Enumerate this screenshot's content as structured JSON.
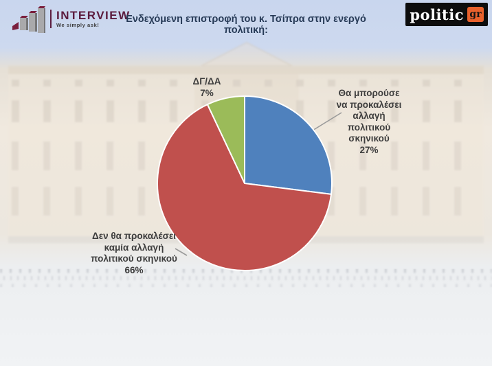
{
  "brand": {
    "interview": {
      "name": "INTERVIEW",
      "tagline": "We simply ask!",
      "color": "#5c1c3e"
    },
    "politic": {
      "text": "politic",
      "suffix": "gr",
      "bg": "#0d0d0d",
      "accent": "#e8612c"
    }
  },
  "title": {
    "text": "Ενδεχόμενη επιστροφή του κ. Τσίπρα στην ενεργό\nπολιτική:"
  },
  "chart_data": {
    "type": "pie",
    "title": "Ενδεχόμενη επιστροφή του κ. Τσίπρα στην ενεργό πολιτική:",
    "unit": "%",
    "direction": "clockwise",
    "start_angle_deg": 0,
    "legend": "none",
    "slices": [
      {
        "id": "could-change",
        "label": "Θα μπορούσε να προκαλέσει αλλαγή πολιτικού σκηνικού",
        "value": 27,
        "color": "#4f81bd"
      },
      {
        "id": "no-change",
        "label": "Δεν θα προκαλέσει καμία αλλαγή πολιτικού σκηνικού",
        "value": 66,
        "color": "#c0504d"
      },
      {
        "id": "dk-na",
        "label": "ΔΓ/ΔΑ",
        "value": 7,
        "color": "#9bbb59"
      }
    ]
  },
  "callouts": {
    "dk": {
      "text": "ΔΓ/ΔΑ\n7%"
    },
    "could_change": {
      "text": "Θα μπορούσε\nνα προκαλέσει\nαλλαγή\nπολιτικού\nσκηνικού\n27%"
    },
    "no_change": {
      "text": "Δεν θα προκαλέσει\nκαμία αλλαγή\nπολιτικού σκηνικού\n66%"
    }
  }
}
